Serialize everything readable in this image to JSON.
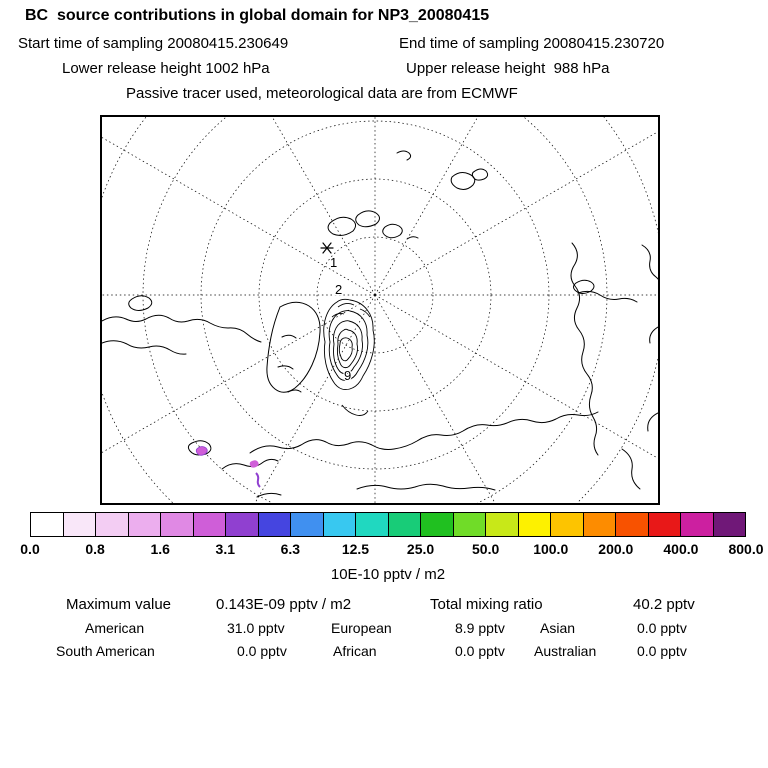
{
  "header": {
    "title": "BC  source contributions in global domain for NP3_20080415",
    "start_time": "Start time of sampling 20080415.230649",
    "end_time": "End time of sampling 20080415.230720",
    "lower_release": "Lower release height 1002 hPa",
    "upper_release": "Upper release height  988 hPa",
    "tracer_note": "Passive tracer used, meteorological data are from ECMWF"
  },
  "map": {
    "markers": [
      {
        "label": "1"
      },
      {
        "label": "2"
      },
      {
        "label": "9"
      }
    ]
  },
  "chart_data": {
    "type": "heatmap",
    "title": "BC source contributions in global domain for NP3_20080415",
    "projection": "north polar stereographic",
    "colorbar": {
      "units": "10E-10 pptv / m2",
      "tick_labels": [
        "0.0",
        "0.8",
        "1.6",
        "3.1",
        "6.3",
        "12.5",
        "25.0",
        "50.0",
        "100.0",
        "200.0",
        "400.0",
        "800.0"
      ],
      "levels": [
        0.0,
        0.8,
        1.6,
        3.1,
        6.3,
        12.5,
        25.0,
        50.0,
        100.0,
        200.0,
        400.0,
        800.0
      ],
      "colors": [
        "#ffffff",
        "#f9e7f9",
        "#f3cdf3",
        "#ecaeee",
        "#e089e4",
        "#cf5ed8",
        "#9040d0",
        "#4545e0",
        "#4090f0",
        "#38c8f0",
        "#20d8c0",
        "#18cc78",
        "#20c020",
        "#70dc28",
        "#c8e818",
        "#fdf100",
        "#fdc400",
        "#fd8c00",
        "#f85200",
        "#e81818",
        "#cc20a0",
        "#701878"
      ]
    },
    "maximum_value": "0.143E-09 pptv / m2",
    "total_mixing_ratio": "40.2 pptv",
    "source_contributions_pptv": {
      "American": 31.0,
      "European": 8.9,
      "Asian": 0.0,
      "South American": 0.0,
      "African": 0.0,
      "Australian": 0.0
    },
    "map_marker_labels": [
      "1",
      "2",
      "9"
    ]
  },
  "stats": {
    "rows": [
      [
        {
          "label": "Maximum value",
          "value": "0.143E-09 pptv / m2"
        },
        {
          "label": "Total mixing ratio",
          "value": "40.2 pptv"
        }
      ],
      [
        {
          "label": "American",
          "value": "31.0 pptv"
        },
        {
          "label": "European",
          "value": "8.9 pptv"
        },
        {
          "label": "Asian",
          "value": "0.0 pptv"
        }
      ],
      [
        {
          "label": "South American",
          "value": "0.0 pptv"
        },
        {
          "label": "African",
          "value": "0.0 pptv"
        },
        {
          "label": "Australian",
          "value": "0.0 pptv"
        }
      ]
    ]
  }
}
